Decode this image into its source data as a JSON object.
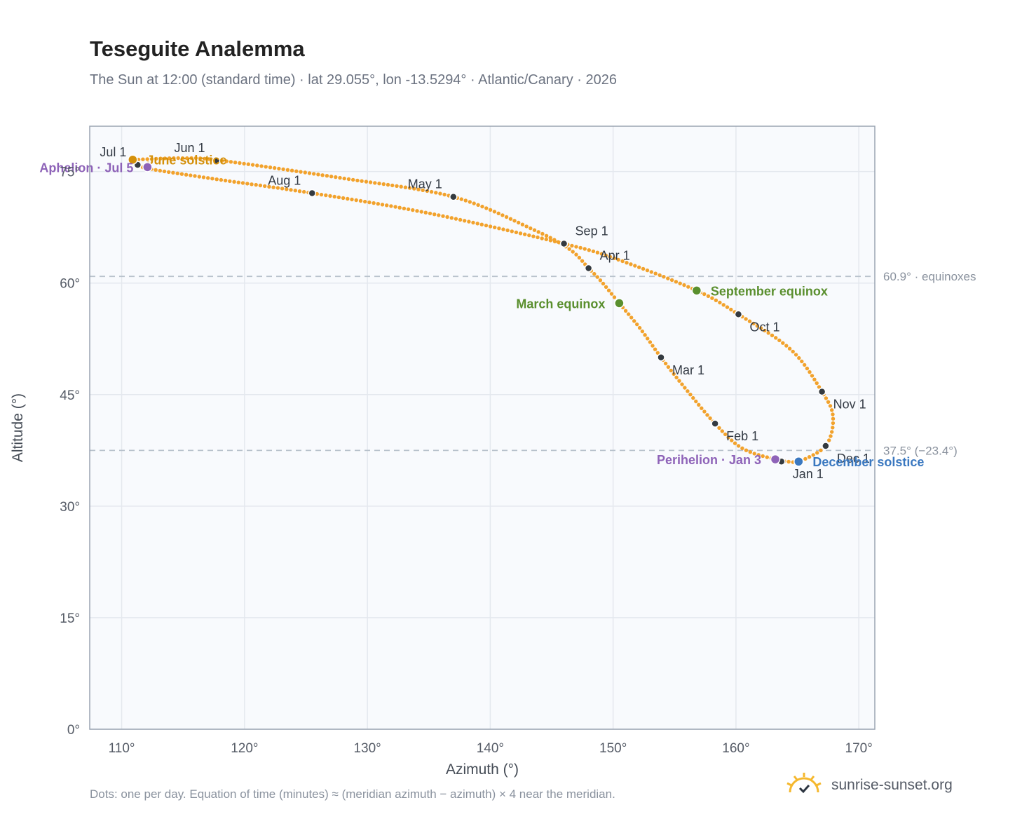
{
  "title": "Teseguite Analemma",
  "subtitle": "The Sun at 12:00 (standard time) · lat 29.055°, lon -13.5294° · Atlantic/Canary · 2026",
  "footnote": "Dots: one per day. Equation of time (minutes) ≈ (meridian azimuth − azimuth) × 4 near the meridian.",
  "brand": {
    "name": "sunrise-sunset.org",
    "logo_icon": "sun-logo-icon"
  },
  "colors": {
    "curve": "#f2a22c",
    "month_marker": "#343a40",
    "equinox": "#5a8f2e",
    "solstice_june": "#d4900a",
    "solstice_december": "#3a78c0",
    "apsis": "#8e63b8",
    "reference_line": "#b8c2cc",
    "plot_background": "#f8fafd",
    "grid": "#e4e8ee",
    "frame": "#9aa4b2"
  },
  "chart_data": {
    "type": "scatter",
    "xlabel": "Azimuth (°)",
    "ylabel": "Altitude (°)",
    "xlim": [
      107.4,
      171.3
    ],
    "ylim": [
      0,
      81.1
    ],
    "xticks": [
      110,
      120,
      130,
      140,
      150,
      160,
      170
    ],
    "yticks": [
      0,
      15,
      30,
      45,
      60,
      75
    ],
    "xtick_labels": [
      "110°",
      "120°",
      "130°",
      "140°",
      "150°",
      "160°",
      "170°"
    ],
    "ytick_labels": [
      "0°",
      "15°",
      "30°",
      "45°",
      "60°",
      "75°"
    ],
    "grid": true,
    "series_description": "one dot per day",
    "path": [
      [
        165.0,
        35.85
      ],
      [
        163.2,
        36.3
      ],
      [
        160.5,
        37.8
      ],
      [
        158.3,
        41.1
      ],
      [
        155.8,
        46.0
      ],
      [
        153.9,
        50.0
      ],
      [
        152.2,
        53.9
      ],
      [
        150.5,
        57.3
      ],
      [
        149.0,
        60.3
      ],
      [
        148.0,
        62.0
      ],
      [
        146.5,
        64.5
      ],
      [
        143.5,
        67.2
      ],
      [
        137.0,
        71.6
      ],
      [
        128.0,
        74.1
      ],
      [
        118.0,
        76.5
      ],
      [
        115.0,
        76.8
      ],
      [
        112.5,
        76.7
      ],
      [
        111.0,
        76.5
      ],
      [
        111.3,
        75.9
      ],
      [
        112.5,
        75.3
      ],
      [
        118.0,
        73.9
      ],
      [
        125.5,
        72.1
      ],
      [
        135.0,
        69.4
      ],
      [
        146.0,
        65.3
      ],
      [
        150.5,
        63.1
      ],
      [
        156.8,
        59.0
      ],
      [
        160.2,
        55.8
      ],
      [
        164.5,
        51.0
      ],
      [
        167.0,
        45.4
      ],
      [
        167.9,
        42.0
      ],
      [
        167.3,
        38.1
      ],
      [
        165.0,
        35.85
      ]
    ],
    "month_markers": [
      {
        "label": "Jan 1",
        "x": 163.7,
        "y": 36.0,
        "label_pos": "below-right"
      },
      {
        "label": "Feb 1",
        "x": 158.3,
        "y": 41.1,
        "label_pos": "below-right"
      },
      {
        "label": "Mar 1",
        "x": 153.9,
        "y": 50.0,
        "label_pos": "below-right"
      },
      {
        "label": "Apr 1",
        "x": 148.0,
        "y": 62.0,
        "label_pos": "above-right"
      },
      {
        "label": "May 1",
        "x": 137.0,
        "y": 71.6,
        "label_pos": "above-left"
      },
      {
        "label": "Jun 1",
        "x": 117.7,
        "y": 76.5,
        "label_pos": "above-left"
      },
      {
        "label": "Jul 1",
        "x": 111.3,
        "y": 75.9,
        "label_pos": "above-left"
      },
      {
        "label": "Aug 1",
        "x": 125.5,
        "y": 72.1,
        "label_pos": "above-left"
      },
      {
        "label": "Sep 1",
        "x": 146.0,
        "y": 65.3,
        "label_pos": "above-right"
      },
      {
        "label": "Oct 1",
        "x": 160.2,
        "y": 55.8,
        "label_pos": "below-right"
      },
      {
        "label": "Nov 1",
        "x": 167.0,
        "y": 45.4,
        "label_pos": "below-right"
      },
      {
        "label": "Dec 1",
        "x": 167.3,
        "y": 38.1,
        "label_pos": "below-right"
      }
    ],
    "events": [
      {
        "label": "June solstice",
        "x": 110.9,
        "y": 76.6,
        "color_key": "solstice_june",
        "label_side": "right"
      },
      {
        "label": "Aphelion · Jul 5",
        "x": 112.1,
        "y": 75.6,
        "color_key": "apsis",
        "label_side": "left"
      },
      {
        "label": "March equinox",
        "x": 150.5,
        "y": 57.3,
        "color_key": "equinox",
        "label_side": "left"
      },
      {
        "label": "September equinox",
        "x": 156.8,
        "y": 59.0,
        "color_key": "equinox",
        "label_side": "right"
      },
      {
        "label": "Perihelion · Jan 3",
        "x": 163.2,
        "y": 36.3,
        "color_key": "apsis",
        "label_side": "left"
      },
      {
        "label": "December solstice",
        "x": 165.1,
        "y": 36.0,
        "color_key": "solstice_december",
        "label_side": "right"
      }
    ],
    "reference_lines": [
      {
        "y": 60.9,
        "label": "60.9° · equinoxes"
      },
      {
        "y": 37.5,
        "label": "37.5° (−23.4°)"
      }
    ]
  }
}
